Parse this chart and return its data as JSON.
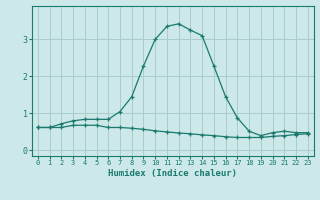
{
  "xlabel": "Humidex (Indice chaleur)",
  "background_color": "#cce8e8",
  "grid_color": "#aacccc",
  "line_color": "#1a7a6e",
  "x_humidex": [
    0,
    1,
    2,
    3,
    4,
    5,
    6,
    7,
    8,
    9,
    10,
    11,
    12,
    13,
    14,
    15,
    16,
    17,
    18,
    19,
    20,
    21,
    22,
    23
  ],
  "y_freq": [
    0.62,
    0.62,
    0.72,
    0.8,
    0.84,
    0.84,
    0.84,
    1.05,
    1.45,
    2.28,
    3.0,
    3.35,
    3.42,
    3.25,
    3.1,
    2.28,
    1.45,
    0.88,
    0.52,
    0.4,
    0.48,
    0.52,
    0.48,
    0.48
  ],
  "y_flat": [
    0.62,
    0.62,
    0.62,
    0.68,
    0.68,
    0.68,
    0.62,
    0.62,
    0.6,
    0.57,
    0.53,
    0.5,
    0.47,
    0.45,
    0.42,
    0.4,
    0.37,
    0.35,
    0.35,
    0.35,
    0.38,
    0.4,
    0.43,
    0.45
  ],
  "ylim": [
    -0.15,
    3.9
  ],
  "xlim": [
    -0.5,
    23.5
  ],
  "yticks": [
    0,
    1,
    2,
    3
  ],
  "xticks": [
    0,
    1,
    2,
    3,
    4,
    5,
    6,
    7,
    8,
    9,
    10,
    11,
    12,
    13,
    14,
    15,
    16,
    17,
    18,
    19,
    20,
    21,
    22,
    23
  ],
  "figsize": [
    3.2,
    2.0
  ],
  "dpi": 100
}
